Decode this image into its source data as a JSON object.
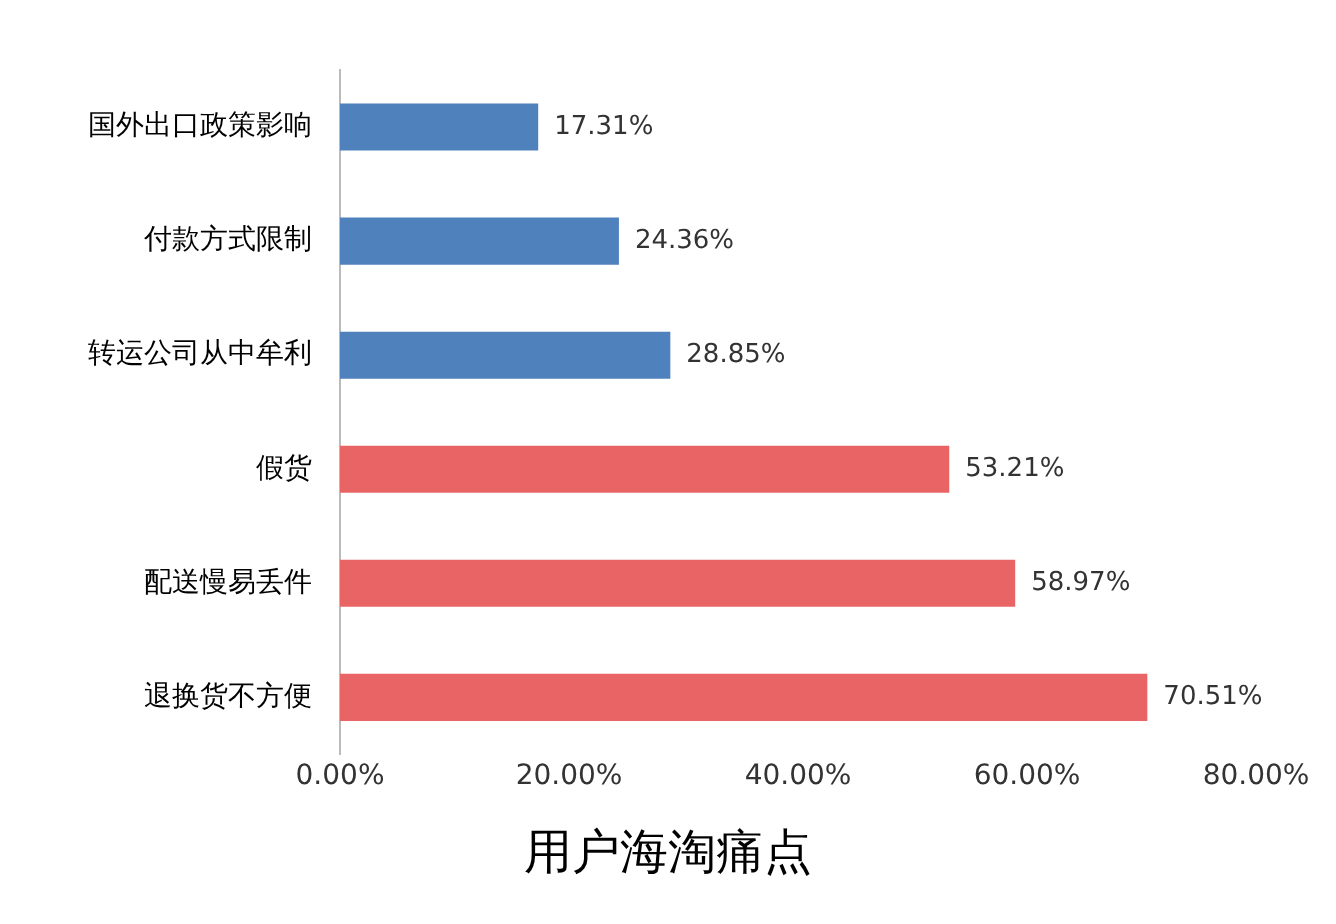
{
  "chart_data": {
    "type": "bar",
    "orientation": "horizontal",
    "title": "用户海淘痛点",
    "categories": [
      "国外出口政策影响",
      "付款方式限制",
      "转运公司从中牟利",
      "假货",
      "配送慢易丢件",
      "退换货不方便"
    ],
    "values": [
      17.31,
      24.36,
      28.85,
      53.21,
      58.97,
      70.51
    ],
    "colors": [
      "#4f81bd",
      "#4f81bd",
      "#4f81bd",
      "#e96565",
      "#e96565",
      "#e96565"
    ],
    "value_labels": [
      "17.31%",
      "24.36%",
      "28.85%",
      "53.21%",
      "58.97%",
      "70.51%"
    ],
    "xlim": [
      0,
      80
    ],
    "xticks": [
      {
        "value": 0,
        "label": "0.00%"
      },
      {
        "value": 20,
        "label": "20.00%"
      },
      {
        "value": 40,
        "label": "40.00%"
      },
      {
        "value": 60,
        "label": "60.00%"
      },
      {
        "value": 80,
        "label": "80.00%"
      }
    ],
    "grid": false,
    "legend": false
  }
}
